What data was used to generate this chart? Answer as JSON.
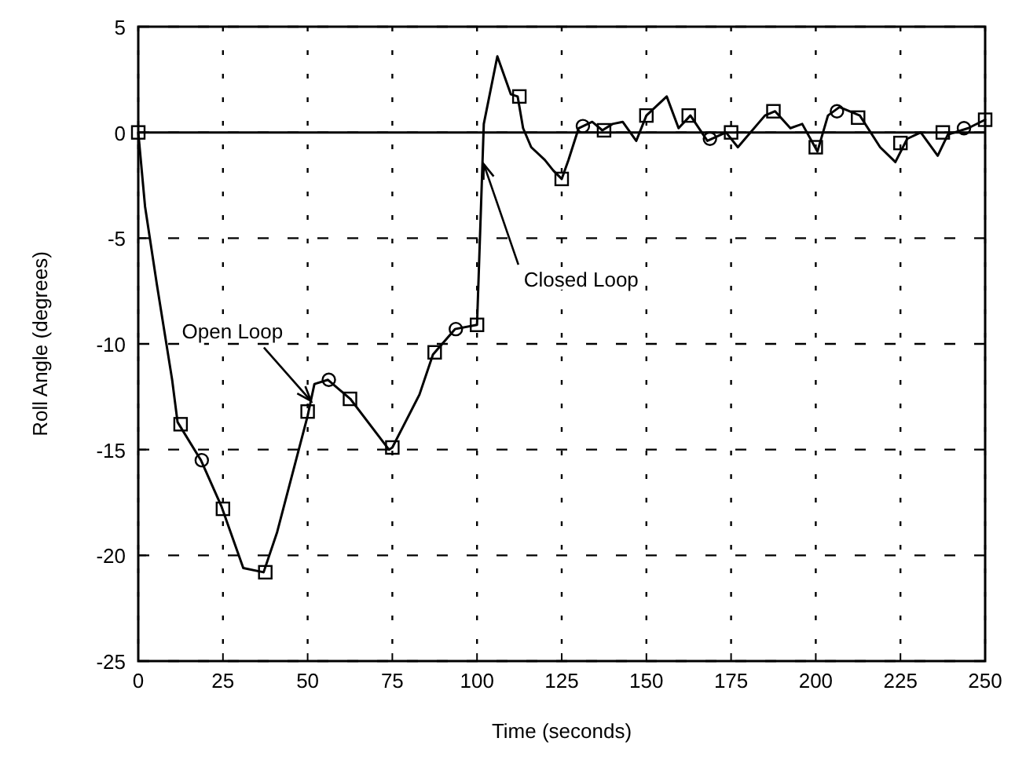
{
  "chart_data": {
    "type": "line",
    "xlabel": "Time (seconds)",
    "ylabel": "Roll Angle (degrees)",
    "xlim": [
      0,
      250
    ],
    "ylim": [
      -25,
      5
    ],
    "xticks": [
      0,
      25,
      50,
      75,
      100,
      125,
      150,
      175,
      200,
      225,
      250
    ],
    "yticks": [
      -25,
      -20,
      -15,
      -10,
      -5,
      0,
      5
    ],
    "grid": true,
    "line_style": "solid",
    "ref_lines": [
      {
        "axis": "y",
        "value": 0,
        "color": "#000000",
        "line_style": "solid"
      }
    ],
    "annotations": [
      {
        "text": "Open Loop",
        "x": 51,
        "y": -12.7
      },
      {
        "text": "Closed Loop",
        "x": 102,
        "y": -1.5
      }
    ],
    "series": [
      {
        "color": "#000000",
        "marker": "none",
        "x": [
          0,
          2,
          5.5,
          10,
          11.6,
          18.5,
          24.6,
          31,
          37,
          41,
          50,
          52,
          56,
          62.6,
          74,
          75,
          83,
          87,
          93.5,
          100,
          102,
          106,
          110,
          112,
          113.6,
          116,
          120,
          122.5,
          125,
          127,
          130,
          134,
          137,
          140,
          143,
          147,
          150,
          156,
          159.5,
          163,
          168,
          173.5,
          177,
          185,
          188,
          192.5,
          196,
          200.5,
          203.6,
          207,
          213,
          219,
          223.5,
          227,
          231,
          236,
          239,
          245,
          250
        ],
        "values": [
          0,
          -3.5,
          -7.2,
          -11.7,
          -13.7,
          -15.5,
          -17.7,
          -20.6,
          -20.8,
          -18.9,
          -13.4,
          -11.9,
          -11.7,
          -12.6,
          -15,
          -14.9,
          -12.4,
          -10.5,
          -9.3,
          -9.1,
          0.4,
          3.6,
          1.8,
          1.7,
          0.2,
          -0.7,
          -1.3,
          -1.8,
          -2.2,
          -1.3,
          0.2,
          0.5,
          0.1,
          0.4,
          0.5,
          -0.4,
          0.8,
          1.7,
          0.2,
          0.8,
          -0.4,
          0,
          -0.7,
          0.8,
          1,
          0.2,
          0.4,
          -0.9,
          0.8,
          1.2,
          0.8,
          -0.7,
          -1.4,
          -0.3,
          0,
          -1.1,
          -0.1,
          0.2,
          0.6
        ]
      },
      {
        "type": "scatter",
        "color": "#000000",
        "marker": "square",
        "x": [
          0,
          12.5,
          25,
          37.5,
          50,
          62.5,
          75,
          87.5,
          100,
          112.5,
          125,
          137.5,
          150,
          162.5,
          175,
          187.5,
          200,
          212.5,
          225,
          237.5,
          250
        ],
        "values": [
          0,
          -13.8,
          -17.8,
          -20.8,
          -13.2,
          -12.6,
          -14.9,
          -10.4,
          -9.1,
          1.7,
          -2.2,
          0.1,
          0.8,
          0.8,
          0,
          1,
          -0.7,
          0.7,
          -0.5,
          0,
          0.6
        ]
      },
      {
        "type": "scatter",
        "color": "#000000",
        "marker": "circle",
        "x": [
          18.75,
          56.25,
          93.75,
          131.25,
          168.75,
          206.25,
          243.75
        ],
        "values": [
          -15.5,
          -11.7,
          -9.3,
          0.3,
          -0.3,
          1,
          0.2
        ]
      }
    ]
  }
}
